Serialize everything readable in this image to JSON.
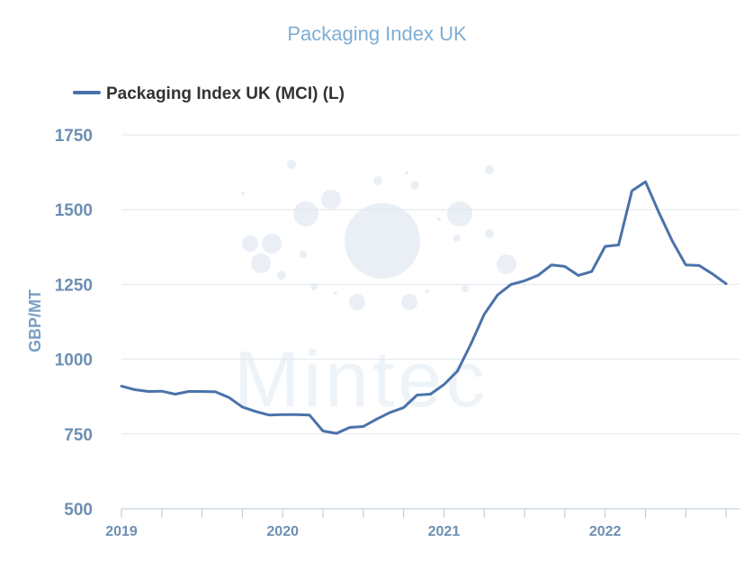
{
  "chart_data": {
    "type": "line",
    "title": "Packaging Index UK",
    "xlabel": "",
    "ylabel": "GBP/MT",
    "ylim": [
      500,
      1750
    ],
    "yticks": [
      500,
      750,
      1000,
      1250,
      1500,
      1750
    ],
    "xtick_labels": [
      "2019",
      "2020",
      "2021",
      "2022"
    ],
    "xlim": [
      "2019-01",
      "2022-11"
    ],
    "grid": true,
    "legend_position": "top-left",
    "colors": {
      "series": "#4a72a9",
      "title": "#7eaed6",
      "ticks": "#6d8fb2",
      "watermark_dots": "#9db9d6"
    },
    "series": [
      {
        "name": "Packaging Index UK (MCI) (L)",
        "x": [
          "2019-01",
          "2019-02",
          "2019-03",
          "2019-04",
          "2019-05",
          "2019-06",
          "2019-07",
          "2019-08",
          "2019-09",
          "2019-10",
          "2019-11",
          "2019-12",
          "2020-01",
          "2020-02",
          "2020-03",
          "2020-04",
          "2020-05",
          "2020-06",
          "2020-07",
          "2020-08",
          "2020-09",
          "2020-10",
          "2020-11",
          "2020-12",
          "2021-01",
          "2021-02",
          "2021-03",
          "2021-04",
          "2021-05",
          "2021-06",
          "2021-07",
          "2021-08",
          "2021-09",
          "2021-10",
          "2021-11",
          "2021-12",
          "2022-01",
          "2022-02",
          "2022-03",
          "2022-04",
          "2022-05",
          "2022-06",
          "2022-07",
          "2022-08",
          "2022-09",
          "2022-10"
        ],
        "values": [
          910,
          898,
          892,
          893,
          883,
          892,
          892,
          891,
          872,
          840,
          825,
          813,
          815,
          815,
          813,
          760,
          752,
          772,
          775,
          800,
          822,
          838,
          880,
          883,
          915,
          960,
          1050,
          1150,
          1215,
          1250,
          1262,
          1280,
          1315,
          1310,
          1280,
          1293,
          1377,
          1382,
          1563,
          1593,
          1490,
          1395,
          1315,
          1313,
          1285,
          1252
        ]
      }
    ]
  },
  "watermark": {
    "text": "Mintec"
  }
}
